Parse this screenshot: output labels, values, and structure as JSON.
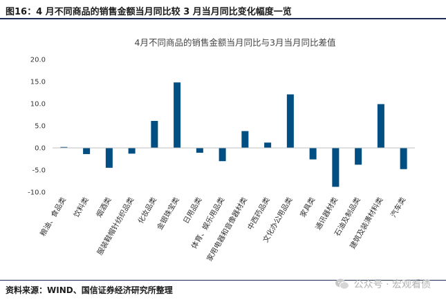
{
  "figure": {
    "title": "图16：4 月不同商品的销售金额当月同比较 3 月当月同比变化幅度一览",
    "source": "资料来源：WIND、国信证券经济研究所整理",
    "watermark": "公众号 · 宏观看债"
  },
  "colors": {
    "bar": "#004e82",
    "axis": "#bfbfbf",
    "rule": "#1f2d55"
  },
  "chart_data": {
    "type": "bar",
    "title": "4月不同商品的销售金额当月同比与3月当月同比差值",
    "xlabel": "",
    "ylabel": "",
    "ylim": [
      -10,
      20
    ],
    "yticks": [
      20,
      15,
      10,
      5,
      0,
      -5,
      -10
    ],
    "ytick_labels": [
      "20.0",
      "15.0",
      "10.0",
      "5.0",
      "0.0",
      "-5.0",
      "-10.0"
    ],
    "grid": false,
    "categories": [
      "粮油、食品类",
      "饮料类",
      "烟酒类",
      "服装鞋帽针纺织品类",
      "化妆品类",
      "金银珠宝类",
      "日用品类",
      "体育、娱乐用品类",
      "家用电器和音像器材类",
      "中西药品类",
      "文化办公用品类",
      "家具类",
      "通讯器材类",
      "石油及制品类",
      "建筑及装潢材料类",
      "汽车类"
    ],
    "values": [
      0.2,
      -1.4,
      -4.5,
      -1.3,
      6.1,
      14.8,
      -1.1,
      -3.0,
      3.8,
      1.2,
      12.1,
      -2.6,
      -8.8,
      -3.8,
      9.9,
      -4.8
    ]
  }
}
